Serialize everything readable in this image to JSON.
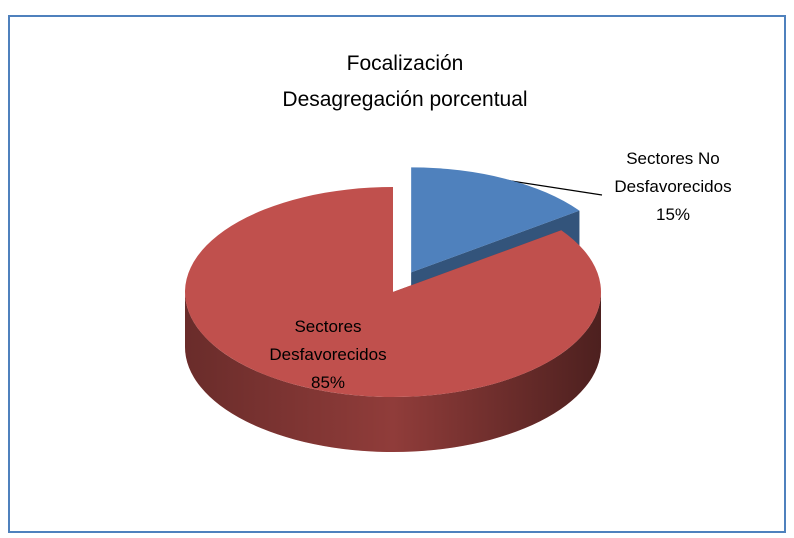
{
  "chart_data": {
    "type": "pie3d",
    "title": "Focalización",
    "subtitle": "Desagregación porcentual",
    "categories": [
      "Sectores No Desfavorecidos",
      "Sectores Desfavorecidos"
    ],
    "values": [
      15,
      85
    ],
    "value_labels": [
      "15%",
      "85%"
    ],
    "colors": [
      "#4f81bd",
      "#c0504d"
    ]
  }
}
